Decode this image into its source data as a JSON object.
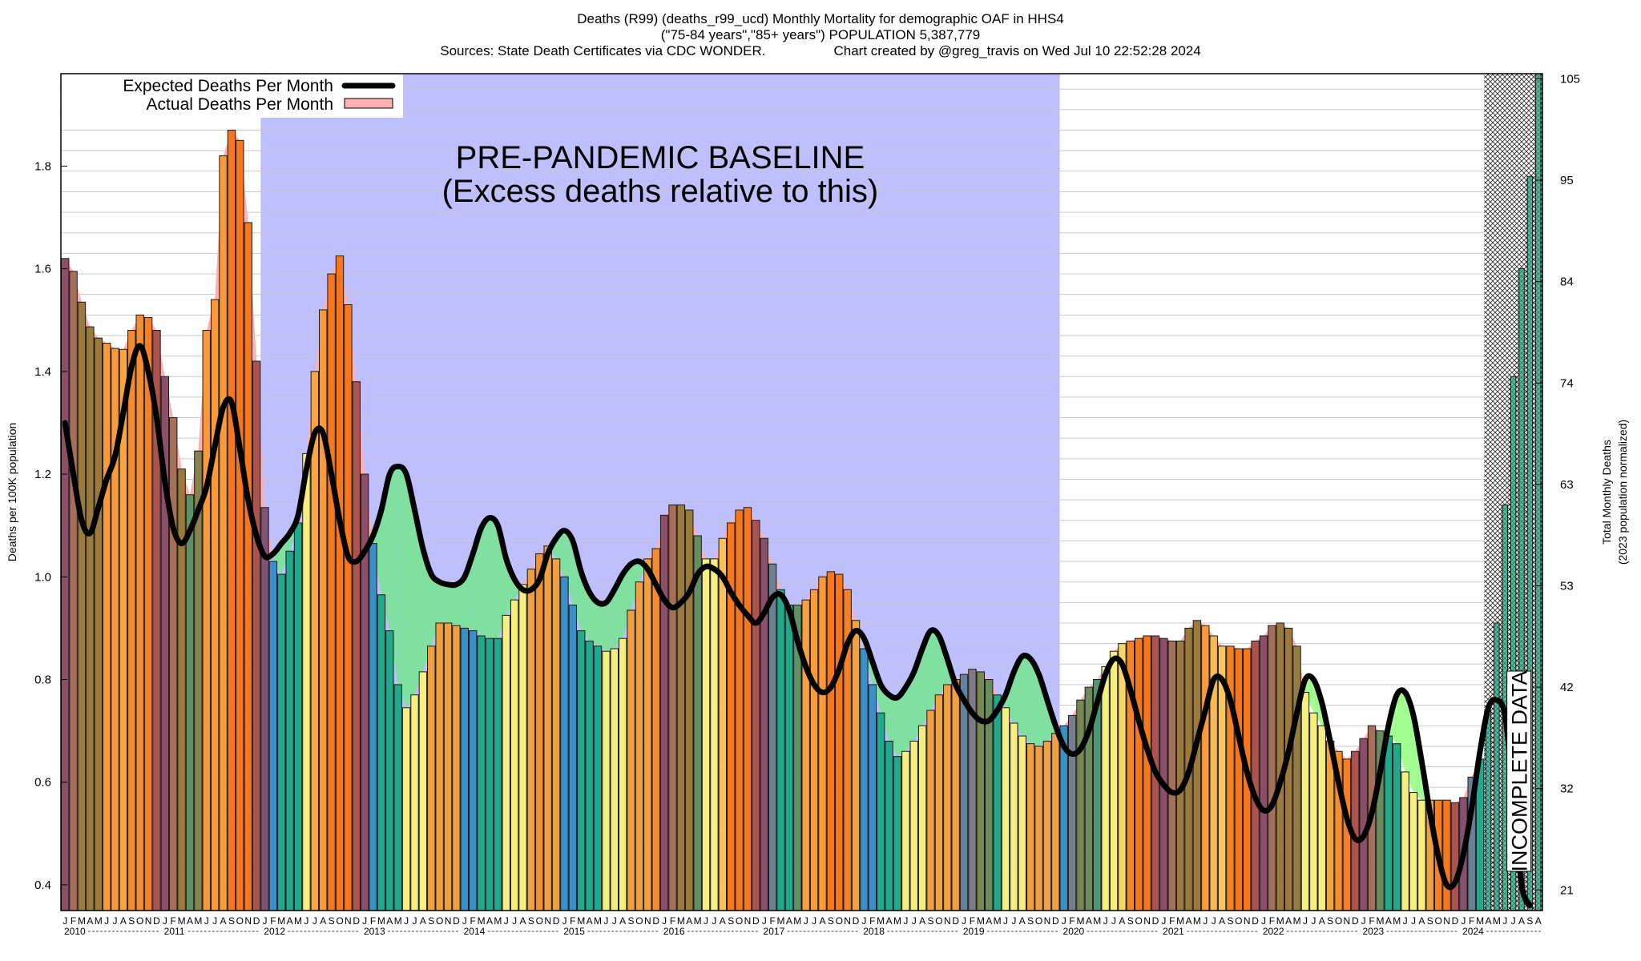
{
  "title_lines": [
    "Deaths (R99) (deaths_r99_ucd) Monthly Mortality for demographic OAF in HHS4",
    "(\"75-84 years\",\"85+ years\") POPULATION 5,387,779",
    "Sources: State Death Certificates via CDC WONDER.                  Chart created by @greg_travis on Wed Jul 10 22:52:28 2024"
  ],
  "chart_data": {
    "type": "bar",
    "ylabel": "Deaths per 100K population",
    "y2label_lines": [
      "Total Monthly Deaths",
      "(2023 population normalized)"
    ],
    "ylim": [
      0.35,
      1.98
    ],
    "yticks": [
      0.4,
      0.6,
      0.8,
      1.0,
      1.2,
      1.4,
      1.6,
      1.8
    ],
    "y2ticks": [
      {
        "value": 0.39,
        "label": "21"
      },
      {
        "value": 0.5875,
        "label": "32"
      },
      {
        "value": 0.785,
        "label": "42"
      },
      {
        "value": 0.9825,
        "label": "53"
      },
      {
        "value": 1.18,
        "label": "63"
      },
      {
        "value": 1.3775,
        "label": "74"
      },
      {
        "value": 1.575,
        "label": "84"
      },
      {
        "value": 1.7725,
        "label": "95"
      },
      {
        "value": 1.97,
        "label": "105"
      }
    ],
    "grid": true,
    "start": "2010-01",
    "month_letters": [
      "J",
      "F",
      "M",
      "A",
      "M",
      "J",
      "J",
      "A",
      "S",
      "O",
      "N",
      "D"
    ],
    "years": [
      "2010",
      "2011",
      "2012",
      "2013",
      "2014",
      "2015",
      "2016",
      "2017",
      "2018",
      "2019",
      "2020",
      "2021",
      "2022",
      "2023",
      "2024"
    ],
    "last_month_label": "A",
    "legend_position": "top-left",
    "series": [
      {
        "name": "Actual Deaths Per Month",
        "color": "#ffb0b0",
        "values": [
          1.62,
          1.595,
          1.535,
          1.487,
          1.465,
          1.455,
          1.445,
          1.443,
          1.48,
          1.51,
          1.505,
          1.48,
          1.39,
          1.31,
          1.21,
          1.16,
          1.245,
          1.48,
          1.54,
          1.82,
          1.87,
          1.85,
          1.69,
          1.42,
          1.135,
          1.03,
          1.005,
          1.05,
          1.105,
          1.24,
          1.4,
          1.52,
          1.59,
          1.625,
          1.53,
          1.38,
          1.2,
          1.065,
          0.965,
          0.895,
          0.79,
          0.745,
          0.77,
          0.815,
          0.865,
          0.91,
          0.91,
          0.905,
          0.9,
          0.895,
          0.885,
          0.88,
          0.88,
          0.925,
          0.955,
          0.985,
          1.015,
          1.045,
          1.06,
          1.035,
          1.0,
          0.945,
          0.895,
          0.875,
          0.865,
          0.855,
          0.86,
          0.88,
          0.935,
          0.99,
          1.035,
          1.055,
          1.12,
          1.14,
          1.14,
          1.13,
          1.08,
          1.035,
          1.035,
          1.075,
          1.105,
          1.13,
          1.135,
          1.11,
          1.075,
          1.025,
          0.975,
          0.945,
          0.945,
          0.955,
          0.975,
          1.0,
          1.01,
          1.005,
          0.975,
          0.915,
          0.86,
          0.79,
          0.735,
          0.68,
          0.65,
          0.66,
          0.68,
          0.71,
          0.74,
          0.77,
          0.79,
          0.8,
          0.81,
          0.82,
          0.815,
          0.8,
          0.77,
          0.745,
          0.715,
          0.69,
          0.675,
          0.67,
          0.68,
          0.695,
          0.71,
          0.73,
          0.76,
          0.785,
          0.8,
          0.825,
          0.855,
          0.87,
          0.875,
          0.88,
          0.885,
          0.885,
          0.88,
          0.875,
          0.875,
          0.9,
          0.915,
          0.905,
          0.885,
          0.865,
          0.865,
          0.86,
          0.86,
          0.875,
          0.885,
          0.905,
          0.91,
          0.9,
          0.865,
          0.775,
          0.735,
          0.71,
          0.68,
          0.66,
          0.645,
          0.66,
          0.685,
          0.71,
          0.7,
          0.69,
          0.675,
          0.62,
          0.58,
          0.565,
          0.565,
          0.565,
          0.565,
          0.56,
          0.57,
          0.61,
          0.645,
          0.74,
          0.91,
          1.14,
          1.39,
          1.6,
          1.78,
          2.0
        ]
      },
      {
        "name": "Expected Deaths Per Month",
        "color": "#000000",
        "values": [
          1.3,
          1.2,
          1.11,
          1.085,
          1.135,
          1.19,
          1.235,
          1.32,
          1.41,
          1.45,
          1.4,
          1.31,
          1.185,
          1.095,
          1.065,
          1.09,
          1.13,
          1.175,
          1.255,
          1.33,
          1.34,
          1.25,
          1.15,
          1.08,
          1.04,
          1.045,
          1.065,
          1.085,
          1.12,
          1.21,
          1.28,
          1.28,
          1.2,
          1.11,
          1.04,
          1.03,
          1.05,
          1.08,
          1.13,
          1.2,
          1.215,
          1.2,
          1.13,
          1.055,
          1.005,
          0.99,
          0.985,
          0.985,
          1.0,
          1.045,
          1.095,
          1.115,
          1.1,
          1.035,
          0.995,
          0.975,
          0.975,
          0.995,
          1.045,
          1.075,
          1.09,
          1.07,
          1.01,
          0.97,
          0.95,
          0.95,
          0.975,
          1.005,
          1.025,
          1.03,
          1.015,
          0.985,
          0.955,
          0.94,
          0.95,
          0.97,
          1.005,
          1.02,
          1.015,
          1.0,
          0.97,
          0.945,
          0.925,
          0.91,
          0.93,
          0.96,
          0.965,
          0.935,
          0.875,
          0.825,
          0.79,
          0.775,
          0.785,
          0.82,
          0.87,
          0.895,
          0.88,
          0.835,
          0.79,
          0.77,
          0.765,
          0.785,
          0.815,
          0.86,
          0.895,
          0.885,
          0.84,
          0.79,
          0.76,
          0.735,
          0.72,
          0.72,
          0.74,
          0.77,
          0.815,
          0.845,
          0.84,
          0.81,
          0.76,
          0.71,
          0.67,
          0.655,
          0.665,
          0.7,
          0.755,
          0.81,
          0.84,
          0.83,
          0.78,
          0.72,
          0.665,
          0.62,
          0.595,
          0.58,
          0.585,
          0.62,
          0.68,
          0.74,
          0.8,
          0.8,
          0.76,
          0.69,
          0.62,
          0.57,
          0.545,
          0.555,
          0.6,
          0.66,
          0.735,
          0.8,
          0.8,
          0.755,
          0.68,
          0.6,
          0.53,
          0.49,
          0.495,
          0.54,
          0.62,
          0.71,
          0.77,
          0.775,
          0.73,
          0.64,
          0.54,
          0.455,
          0.4,
          0.405,
          0.46,
          0.55,
          0.66,
          0.745,
          0.76,
          0.73,
          0.58,
          0.4,
          0.36
        ]
      }
    ],
    "annotations": [
      "PRE-PANDEMIC BASELINE",
      "(Excess deaths relative to this)",
      "INCOMPLETE DATA"
    ],
    "baseline_shading": {
      "from": "2012-01",
      "to": "2019-12",
      "color": "#bfbfff"
    },
    "incomplete_from": "2024-04",
    "bar_palette": {
      "winter": "#3a8fc8",
      "spring": "#22a88a",
      "summer": "#f5ef80",
      "autumn": "#f0a040"
    },
    "excess_fill": "#ffb0b0",
    "deficit_fill": "#80e0a0",
    "deficit_fill_2020_on": "#a0ff90"
  }
}
